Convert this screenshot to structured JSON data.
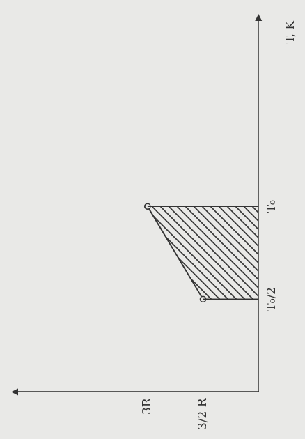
{
  "chart_data": {
    "type": "line",
    "x_label": "T, K",
    "x": [
      0.5,
      1
    ],
    "values": [
      1.5,
      3
    ],
    "color": "#333333",
    "xlim": [
      0,
      2
    ],
    "xticks": [
      {
        "value": 0.5,
        "label": "T₀/2"
      },
      {
        "value": 1,
        "label": "T₀"
      }
    ],
    "ylim": [
      0,
      6.5
    ],
    "yticks": [
      {
        "value": 1.5,
        "label": "3/2 R"
      },
      {
        "value": 3,
        "label": "3R"
      }
    ],
    "grid": false,
    "marker": "circle"
  }
}
